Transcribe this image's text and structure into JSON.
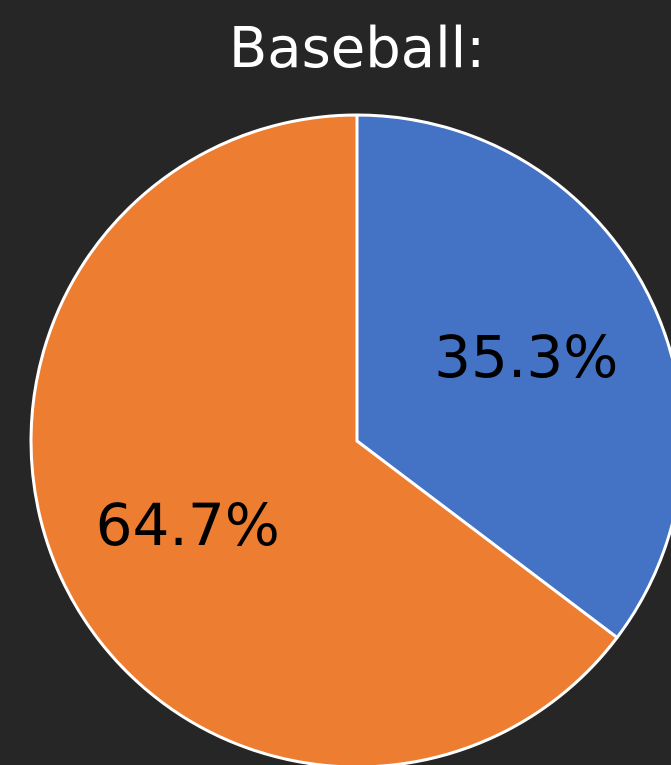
{
  "chart_data": {
    "type": "pie",
    "title": "Baseball:",
    "slices": [
      {
        "value": 35.3,
        "label": "35.3%",
        "color": "#4472C4"
      },
      {
        "value": 64.7,
        "label": "64.7%",
        "color": "#ED7D31"
      }
    ],
    "start_angle_deg": 0,
    "direction": "clockwise",
    "slice_border_color": "#FFFFFF",
    "background_color": "#262626",
    "legend": "none"
  }
}
